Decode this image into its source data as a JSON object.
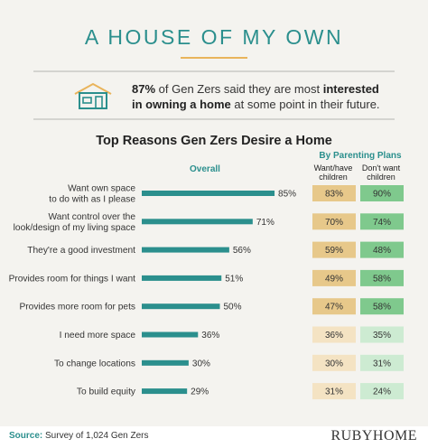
{
  "colors": {
    "accent": "#2b8f8d",
    "gold": "#e9b45b",
    "bar": "#2b8f8d",
    "want_strong": "#e7c88a",
    "want_light": "#f4e3c3",
    "dont_strong": "#7fc98d",
    "dont_light": "#cdebd2"
  },
  "header": {
    "title": "A HOUSE OF MY OWN"
  },
  "stat": {
    "lead": "87%",
    "text1": " of Gen Zers said they are most ",
    "bold1": "interested",
    "bold2": "in owning a home",
    "text2": " at some point in their future."
  },
  "chart_data": {
    "type": "bar",
    "title": "Top Reasons Gen Zers Desire a Home",
    "overall_label": "Overall",
    "group_label": "By Parenting Plans",
    "col1_label": [
      "Want/have",
      "children"
    ],
    "col2_label": [
      "Don't want",
      "children"
    ],
    "categories": [
      [
        "Want own space",
        "to do with as I please"
      ],
      [
        "Want control over the",
        "look/design of my living space"
      ],
      [
        "They're a good investment"
      ],
      [
        "Provides room for things I want"
      ],
      [
        "Provides more room for pets"
      ],
      [
        "I need more space"
      ],
      [
        "To change locations"
      ],
      [
        "To build equity"
      ]
    ],
    "series": [
      {
        "name": "Overall",
        "values": [
          85,
          71,
          56,
          51,
          50,
          36,
          30,
          29
        ]
      },
      {
        "name": "Want/have children",
        "values": [
          83,
          70,
          59,
          49,
          47,
          36,
          30,
          31
        ]
      },
      {
        "name": "Don't want children",
        "values": [
          90,
          74,
          48,
          58,
          58,
          35,
          31,
          24
        ]
      }
    ],
    "value_suffix": "%"
  },
  "footer": {
    "source_label": "Source:",
    "source_text": " Survey of 1,024 Gen Zers",
    "brand": "RUBYHOME"
  }
}
